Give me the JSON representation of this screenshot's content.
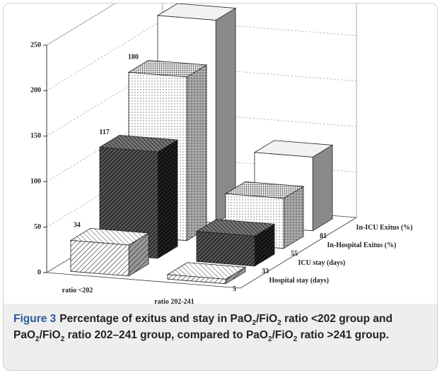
{
  "chart_data": {
    "type": "bar3d",
    "categories": [
      "ratio <202",
      "ratio 202-241"
    ],
    "series": [
      {
        "name": "Hospital stay (days)",
        "pattern": "diagonal",
        "values": [
          34,
          5
        ]
      },
      {
        "name": "ICU stay (days)",
        "pattern": "dense-diagonal",
        "values": [
          117,
          33
        ]
      },
      {
        "name": "In-Hospital Exitus (%)",
        "pattern": "dots",
        "values": [
          180,
          55
        ]
      },
      {
        "name": "In-ICU Exitus (%)",
        "pattern": "plain",
        "values": [
          223,
          81
        ]
      }
    ],
    "ylim": [
      0,
      250
    ],
    "yticks": [
      0,
      50,
      100,
      150,
      200,
      250
    ],
    "grid": true
  },
  "caption": {
    "label": "Figure 3",
    "runs": [
      {
        "text": "Percentage of exitus and stay in PaO"
      },
      {
        "text": "2",
        "sub": true
      },
      {
        "text": "/FiO"
      },
      {
        "text": "2",
        "sub": true
      },
      {
        "text": " ratio <202 group and PaO"
      },
      {
        "text": "2",
        "sub": true
      },
      {
        "text": "/FiO"
      },
      {
        "text": "2",
        "sub": true
      },
      {
        "text": " ratio 202–241 group, compared to PaO"
      },
      {
        "text": "2",
        "sub": true
      },
      {
        "text": "/FiO"
      },
      {
        "text": "2",
        "sub": true
      },
      {
        "text": " ratio >241 group."
      }
    ]
  }
}
